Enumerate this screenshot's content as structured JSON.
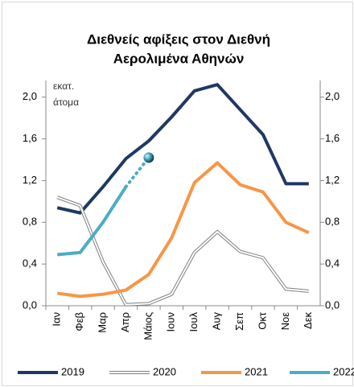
{
  "chart_data": {
    "type": "line",
    "title": [
      "Διεθνείς αφίξεις στον Διεθνή",
      "Αερολιμένα Αθηνών"
    ],
    "y_label": [
      "εκατ.",
      "άτομα"
    ],
    "categories": [
      "Ιαν",
      "Φεβ",
      "Μαρ",
      "Απρ",
      "Μάιος",
      "Ιουν",
      "Ιουλ",
      "Αυγ",
      "Σεπ",
      "Οκτ",
      "Νοε",
      "Δεκ"
    ],
    "series": [
      {
        "name": "2019",
        "color": "#1f3864",
        "style": "solid",
        "values": [
          0.94,
          0.89,
          1.14,
          1.41,
          1.58,
          1.81,
          2.06,
          2.12,
          1.88,
          1.64,
          1.17,
          1.17
        ]
      },
      {
        "name": "2020",
        "color": "#7f7f7f",
        "style": "double",
        "values": [
          1.04,
          0.96,
          0.42,
          0.01,
          0.02,
          0.11,
          0.51,
          0.71,
          0.52,
          0.46,
          0.16,
          0.14
        ]
      },
      {
        "name": "2021",
        "color": "#f79646",
        "style": "solid",
        "values": [
          0.12,
          0.09,
          0.11,
          0.15,
          0.3,
          0.65,
          1.18,
          1.37,
          1.16,
          1.09,
          0.8,
          0.7
        ]
      },
      {
        "name": "2022",
        "color": "#4bacc6",
        "style": "dotted-last",
        "values": [
          0.49,
          0.51,
          0.8,
          1.14,
          1.42,
          null,
          null,
          null,
          null,
          null,
          null,
          null
        ]
      }
    ],
    "ylim": [
      0,
      2.16
    ],
    "yticks": [
      {
        "value": 0,
        "label": "0,0"
      },
      {
        "value": 0.4,
        "label": "0,4"
      },
      {
        "value": 0.8,
        "label": "0,8"
      },
      {
        "value": 1.2,
        "label": "1,2"
      },
      {
        "value": 1.6,
        "label": "1,6"
      },
      {
        "value": 2.0,
        "label": "2,0"
      }
    ],
    "y2lim": [
      0,
      2.16
    ],
    "y2ticks": [
      {
        "value": 0,
        "label": "0,0"
      },
      {
        "value": 0.4,
        "label": "0,4"
      },
      {
        "value": 0.8,
        "label": "0,8"
      },
      {
        "value": 1.2,
        "label": "1,2"
      },
      {
        "value": 1.6,
        "label": "1,6"
      },
      {
        "value": 2.0,
        "label": "2,0"
      }
    ],
    "legend": "bottom"
  }
}
